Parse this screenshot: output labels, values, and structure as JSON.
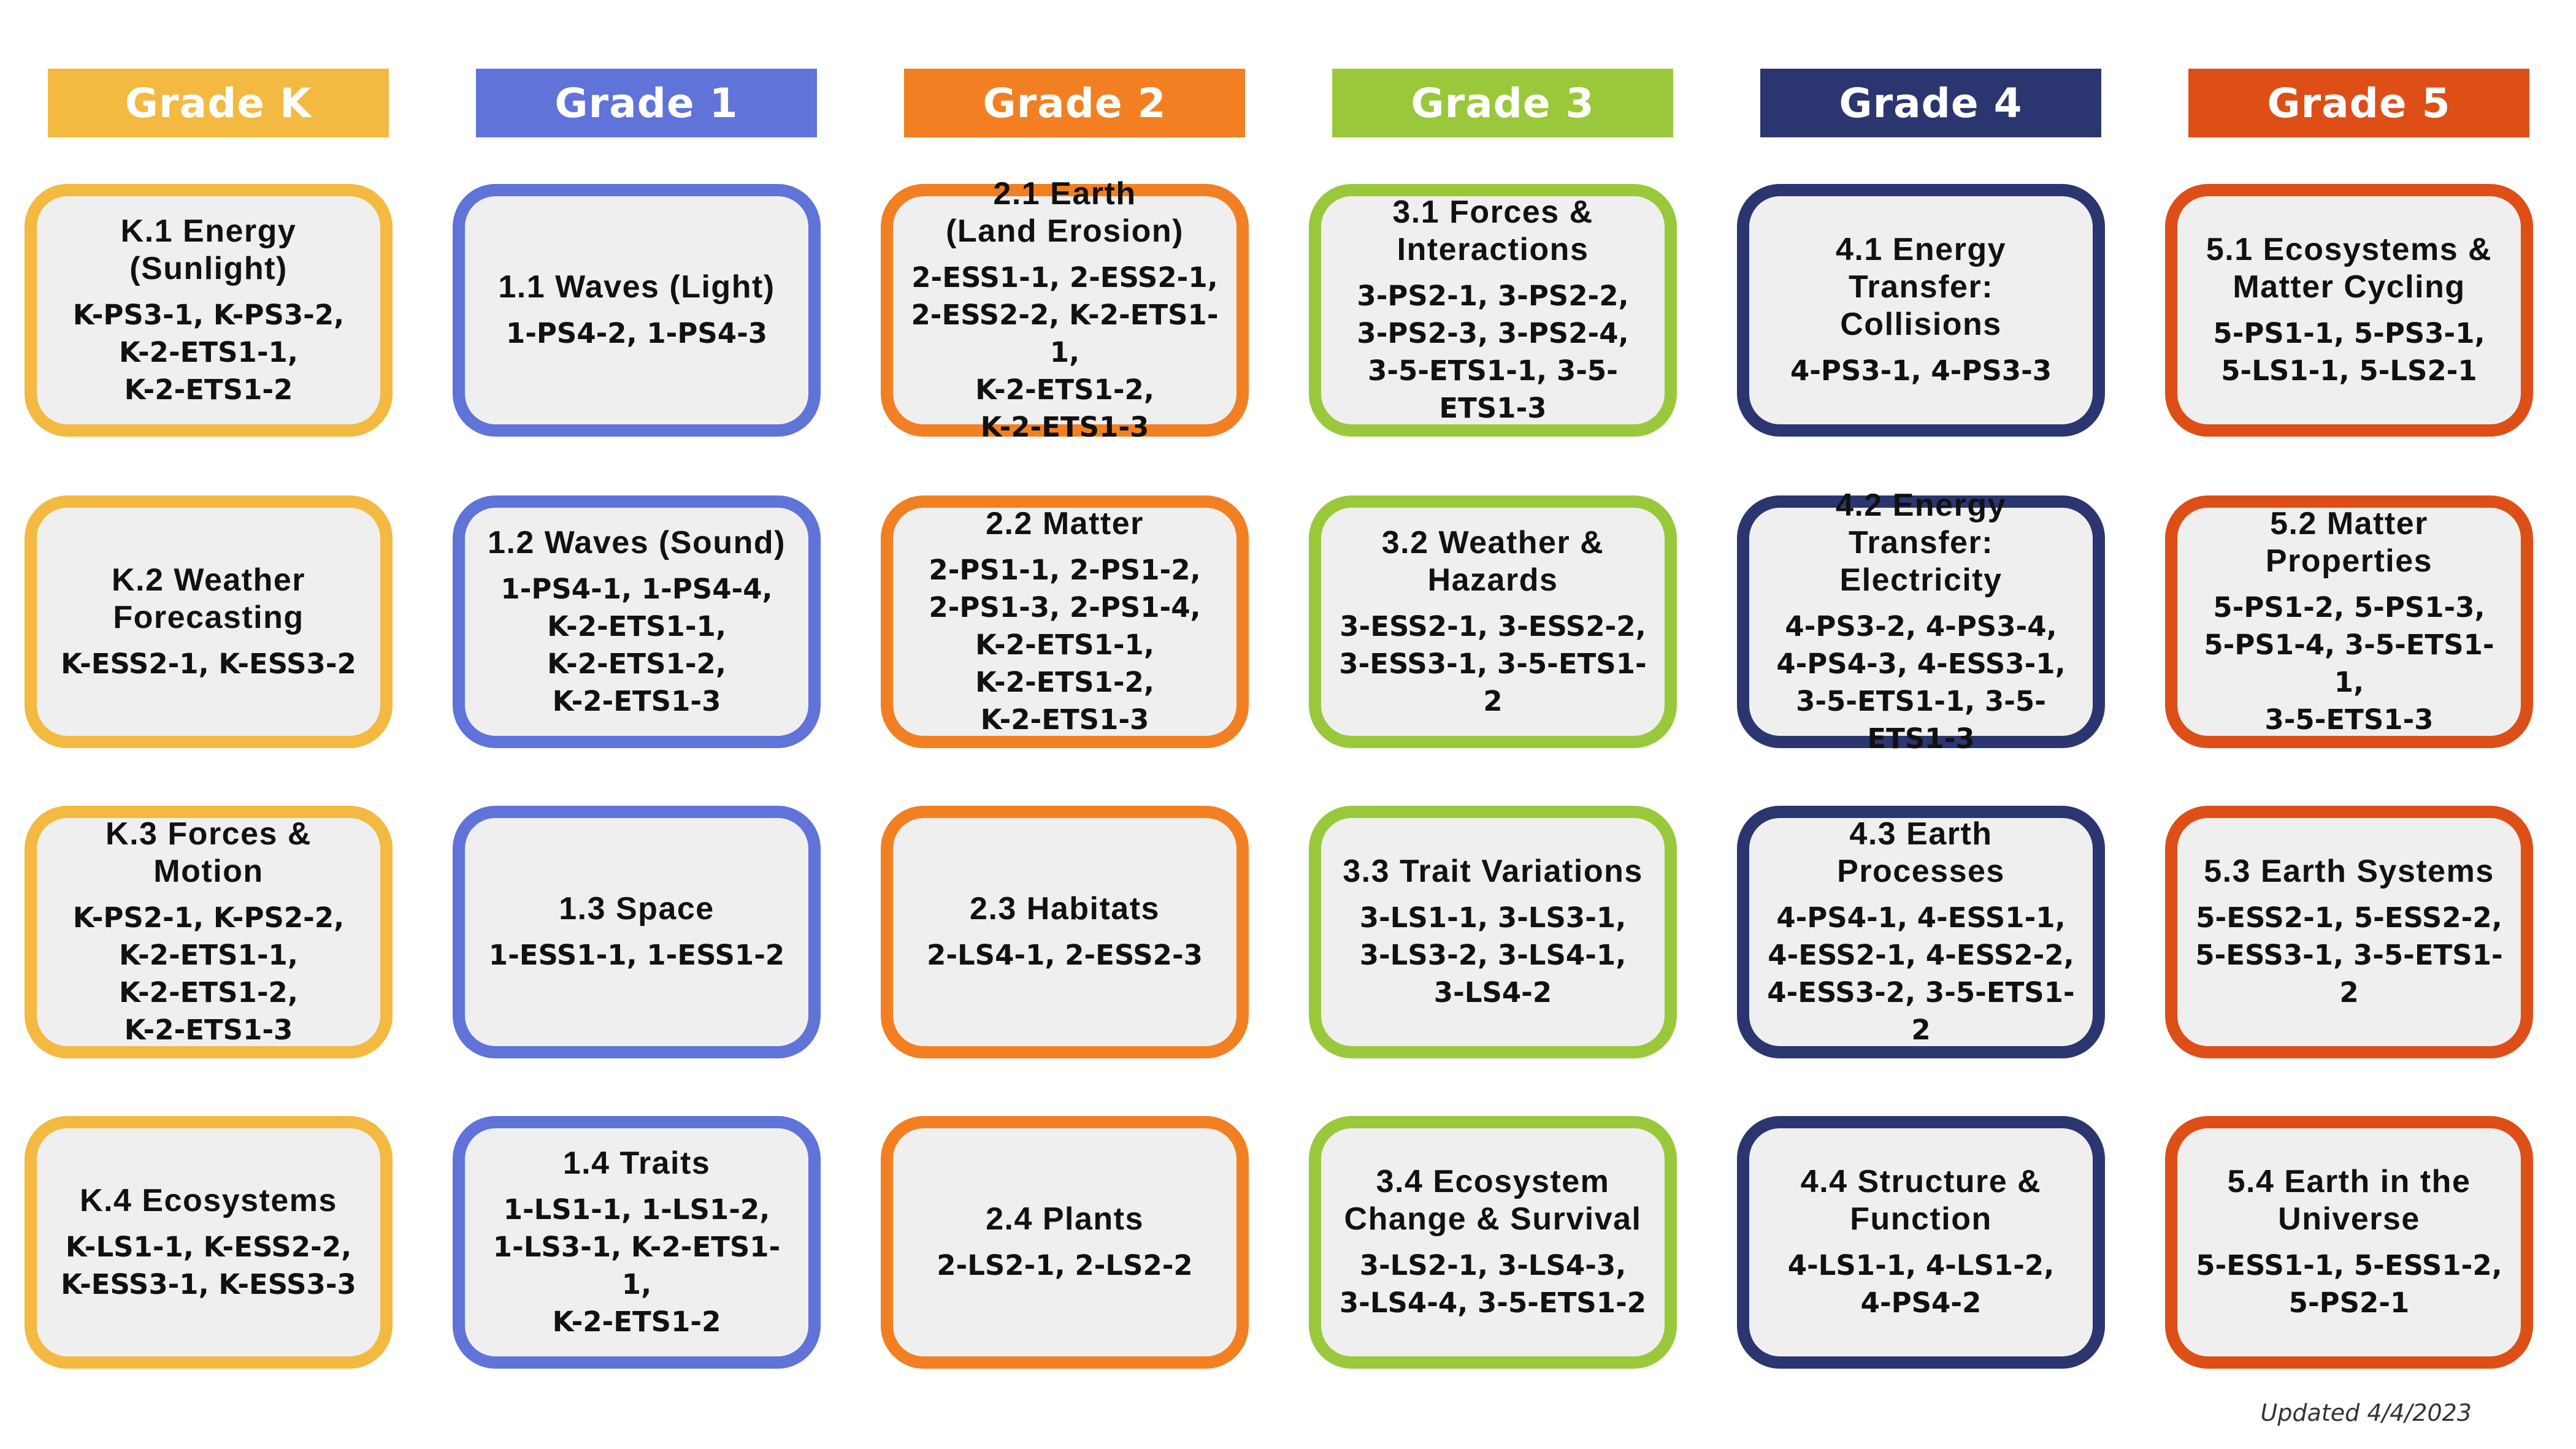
{
  "columns": [
    {
      "header": "Grade K",
      "color": "#f3b940",
      "cards": [
        {
          "title": "K.1 Energy\n(Sunlight)",
          "standards": "K-PS3-1, K-PS3-2,\nK-2-ETS1-1,\nK-2-ETS1-2"
        },
        {
          "title": "K.2 Weather\nForecasting",
          "standards": "K-ESS2-1, K-ESS3-2"
        },
        {
          "title": "K.3 Forces &\nMotion",
          "standards": "K-PS2-1, K-PS2-2,\nK-2-ETS1-1,\nK-2-ETS1-2,\nK-2-ETS1-3"
        },
        {
          "title": "K.4 Ecosystems",
          "standards": "K-LS1-1, K-ESS2-2,\nK-ESS3-1, K-ESS3-3"
        }
      ]
    },
    {
      "header": "Grade 1",
      "color": "#5f73d9",
      "cards": [
        {
          "title": "1.1 Waves (Light)",
          "standards": "1-PS4-2, 1-PS4-3"
        },
        {
          "title": "1.2 Waves (Sound)",
          "standards": "1-PS4-1, 1-PS4-4,\nK-2-ETS1-1,\nK-2-ETS1-2,\nK-2-ETS1-3"
        },
        {
          "title": "1.3 Space",
          "standards": "1-ESS1-1, 1-ESS1-2"
        },
        {
          "title": "1.4 Traits",
          "standards": "1-LS1-1, 1-LS1-2,\n1-LS3-1, K-2-ETS1-1,\nK-2-ETS1-2"
        }
      ]
    },
    {
      "header": "Grade 2",
      "color": "#f28022",
      "cards": [
        {
          "title": "2.1 Earth\n(Land Erosion)",
          "standards": "2-ESS1-1, 2-ESS2-1,\n2-ESS2-2, K-2-ETS1-1,\nK-2-ETS1-2,\nK-2-ETS1-3"
        },
        {
          "title": "2.2 Matter",
          "standards": "2-PS1-1, 2-PS1-2,\n2-PS1-3, 2-PS1-4,\nK-2-ETS1-1,\nK-2-ETS1-2,\nK-2-ETS1-3"
        },
        {
          "title": "2.3 Habitats",
          "standards": "2-LS4-1, 2-ESS2-3"
        },
        {
          "title": "2.4 Plants",
          "standards": "2-LS2-1, 2-LS2-2"
        }
      ]
    },
    {
      "header": "Grade 3",
      "color": "#99c93b",
      "cards": [
        {
          "title": "3.1 Forces &\nInteractions",
          "standards": "3-PS2-1, 3-PS2-2,\n3-PS2-3, 3-PS2-4,\n3-5-ETS1-1, 3-5-ETS1-3"
        },
        {
          "title": "3.2 Weather &\nHazards",
          "standards": "3-ESS2-1, 3-ESS2-2,\n3-ESS3-1, 3-5-ETS1-2"
        },
        {
          "title": "3.3 Trait Variations",
          "standards": "3-LS1-1, 3-LS3-1,\n3-LS3-2, 3-LS4-1,\n3-LS4-2"
        },
        {
          "title": "3.4 Ecosystem\nChange & Survival",
          "standards": "3-LS2-1, 3-LS4-3,\n3-LS4-4, 3-5-ETS1-2"
        }
      ]
    },
    {
      "header": "Grade 4",
      "color": "#2b3670",
      "cards": [
        {
          "title": "4.1 Energy\nTransfer:\nCollisions",
          "standards": "4-PS3-1, 4-PS3-3"
        },
        {
          "title": "4.2 Energy\nTransfer:\nElectricity",
          "standards": "4-PS3-2, 4-PS3-4,\n4-PS4-3, 4-ESS3-1,\n3-5-ETS1-1, 3-5-ETS1-3"
        },
        {
          "title": "4.3 Earth\nProcesses",
          "standards": "4-PS4-1, 4-ESS1-1,\n4-ESS2-1, 4-ESS2-2,\n4-ESS3-2, 3-5-ETS1-2"
        },
        {
          "title": "4.4 Structure &\nFunction",
          "standards": "4-LS1-1, 4-LS1-2,\n4-PS4-2"
        }
      ]
    },
    {
      "header": "Grade 5",
      "color": "#dd4f17",
      "cards": [
        {
          "title": "5.1 Ecosystems &\nMatter Cycling",
          "standards": "5-PS1-1, 5-PS3-1,\n5-LS1-1, 5-LS2-1"
        },
        {
          "title": "5.2 Matter\nProperties",
          "standards": "5-PS1-2, 5-PS1-3,\n5-PS1-4, 3-5-ETS1-1,\n3-5-ETS1-3"
        },
        {
          "title": "5.3 Earth Systems",
          "standards": "5-ESS2-1, 5-ESS2-2,\n5-ESS3-1, 3-5-ETS1-2"
        },
        {
          "title": "5.4 Earth in the\nUniverse",
          "standards": "5-ESS1-1, 5-ESS1-2,\n5-PS2-1"
        }
      ]
    }
  ],
  "footer": {
    "updated": "Updated 4/4/2023"
  }
}
